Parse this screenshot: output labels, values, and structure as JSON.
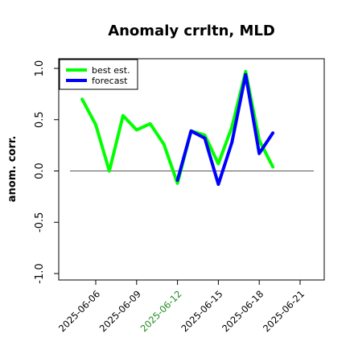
{
  "chart_data": {
    "type": "line",
    "title": "Anomaly crrltn, MLD",
    "xlabel": "",
    "ylabel": "anom. corr.",
    "ylim": [
      -1.0,
      1.0
    ],
    "yticks": [
      "-1.0",
      "-0.5",
      "0.0",
      "0.5",
      "1.0"
    ],
    "xticks": [
      "2025-06-06",
      "2025-06-09",
      "2025-06-12",
      "2025-06-15",
      "2025-06-18",
      "2025-06-21"
    ],
    "highlighted_xtick": "2025-06-12",
    "highlight_color": "#228B22",
    "reference_line_y": 0.0,
    "legend_position": "top-left",
    "series": [
      {
        "name": "best est.",
        "color": "#00ff00",
        "x": [
          "2025-06-05",
          "2025-06-06",
          "2025-06-07",
          "2025-06-08",
          "2025-06-09",
          "2025-06-10",
          "2025-06-11",
          "2025-06-12",
          "2025-06-13",
          "2025-06-14",
          "2025-06-15",
          "2025-06-16",
          "2025-06-17",
          "2025-06-18",
          "2025-06-19"
        ],
        "values": [
          0.7,
          0.45,
          0.0,
          0.54,
          0.4,
          0.46,
          0.26,
          -0.12,
          0.39,
          0.35,
          0.07,
          0.43,
          0.97,
          0.3,
          0.04
        ]
      },
      {
        "name": "forecast",
        "color": "#0000ff",
        "x": [
          "2025-06-12",
          "2025-06-13",
          "2025-06-14",
          "2025-06-15",
          "2025-06-16",
          "2025-06-17",
          "2025-06-18",
          "2025-06-19"
        ],
        "values": [
          -0.09,
          0.39,
          0.32,
          -0.13,
          0.28,
          0.94,
          0.17,
          0.37
        ]
      }
    ]
  }
}
